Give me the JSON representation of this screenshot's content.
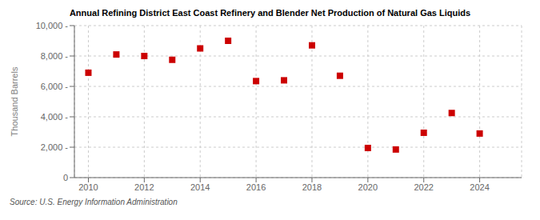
{
  "chart_data": {
    "type": "scatter",
    "title": "Annual Refining District East Coast Refinery and Blender Net Production of Natural Gas Liquids",
    "ylabel": "Thousand Barrels",
    "source": "Source: U.S. Energy Information Administration",
    "x": [
      2010,
      2011,
      2012,
      2013,
      2014,
      2015,
      2016,
      2017,
      2018,
      2019,
      2020,
      2021,
      2022,
      2023,
      2024
    ],
    "values": [
      6900,
      8100,
      8000,
      7750,
      8500,
      9000,
      6350,
      6400,
      8700,
      6700,
      1950,
      1850,
      2950,
      4250,
      2900
    ],
    "color": "#cc0000",
    "marker": "square",
    "xlim": [
      2009.5,
      2025.5
    ],
    "ylim": [
      0,
      10000
    ],
    "xticks": [
      2010,
      2012,
      2014,
      2016,
      2018,
      2020,
      2022,
      2024
    ],
    "yticks": [
      0,
      {
        "value": 2000,
        "label": "2,000 -"
      },
      {
        "value": 4000,
        "label": "4,000 -"
      },
      {
        "value": 6000,
        "label": "6,000 -"
      },
      {
        "value": 8000,
        "label": "8,000 -"
      },
      {
        "value": 10000,
        "label": "10,000 -"
      }
    ],
    "grid": true
  }
}
